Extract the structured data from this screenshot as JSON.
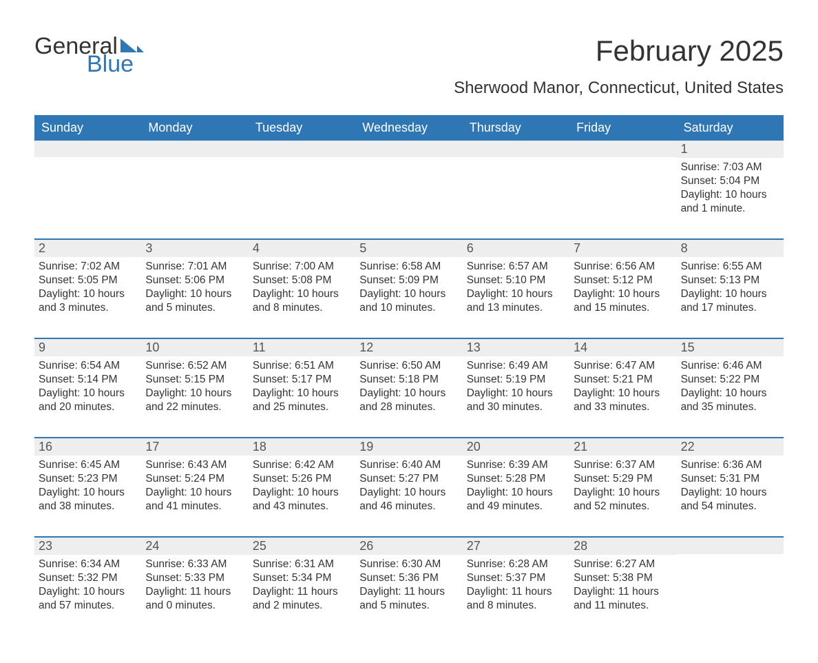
{
  "brand": {
    "line1": "General",
    "line2": "Blue",
    "text_color": "#333333",
    "accent_color": "#2f76b5"
  },
  "header": {
    "month_title": "February 2025",
    "location": "Sherwood Manor, Connecticut, United States",
    "title_fontsize": 42,
    "location_fontsize": 24
  },
  "calendar": {
    "type": "calendar-table",
    "header_bg": "#2f76b5",
    "header_text_color": "#ffffff",
    "row_divider_color": "#2f76b5",
    "daynum_bg": "#eeeeee",
    "background_color": "#ffffff",
    "text_color": "#333333",
    "body_fontsize": 15.5,
    "weekdays": [
      "Sunday",
      "Monday",
      "Tuesday",
      "Wednesday",
      "Thursday",
      "Friday",
      "Saturday"
    ],
    "weeks": [
      [
        null,
        null,
        null,
        null,
        null,
        null,
        {
          "day": "1",
          "sunrise": "Sunrise: 7:03 AM",
          "sunset": "Sunset: 5:04 PM",
          "daylight": "Daylight: 10 hours and 1 minute."
        }
      ],
      [
        {
          "day": "2",
          "sunrise": "Sunrise: 7:02 AM",
          "sunset": "Sunset: 5:05 PM",
          "daylight": "Daylight: 10 hours and 3 minutes."
        },
        {
          "day": "3",
          "sunrise": "Sunrise: 7:01 AM",
          "sunset": "Sunset: 5:06 PM",
          "daylight": "Daylight: 10 hours and 5 minutes."
        },
        {
          "day": "4",
          "sunrise": "Sunrise: 7:00 AM",
          "sunset": "Sunset: 5:08 PM",
          "daylight": "Daylight: 10 hours and 8 minutes."
        },
        {
          "day": "5",
          "sunrise": "Sunrise: 6:58 AM",
          "sunset": "Sunset: 5:09 PM",
          "daylight": "Daylight: 10 hours and 10 minutes."
        },
        {
          "day": "6",
          "sunrise": "Sunrise: 6:57 AM",
          "sunset": "Sunset: 5:10 PM",
          "daylight": "Daylight: 10 hours and 13 minutes."
        },
        {
          "day": "7",
          "sunrise": "Sunrise: 6:56 AM",
          "sunset": "Sunset: 5:12 PM",
          "daylight": "Daylight: 10 hours and 15 minutes."
        },
        {
          "day": "8",
          "sunrise": "Sunrise: 6:55 AM",
          "sunset": "Sunset: 5:13 PM",
          "daylight": "Daylight: 10 hours and 17 minutes."
        }
      ],
      [
        {
          "day": "9",
          "sunrise": "Sunrise: 6:54 AM",
          "sunset": "Sunset: 5:14 PM",
          "daylight": "Daylight: 10 hours and 20 minutes."
        },
        {
          "day": "10",
          "sunrise": "Sunrise: 6:52 AM",
          "sunset": "Sunset: 5:15 PM",
          "daylight": "Daylight: 10 hours and 22 minutes."
        },
        {
          "day": "11",
          "sunrise": "Sunrise: 6:51 AM",
          "sunset": "Sunset: 5:17 PM",
          "daylight": "Daylight: 10 hours and 25 minutes."
        },
        {
          "day": "12",
          "sunrise": "Sunrise: 6:50 AM",
          "sunset": "Sunset: 5:18 PM",
          "daylight": "Daylight: 10 hours and 28 minutes."
        },
        {
          "day": "13",
          "sunrise": "Sunrise: 6:49 AM",
          "sunset": "Sunset: 5:19 PM",
          "daylight": "Daylight: 10 hours and 30 minutes."
        },
        {
          "day": "14",
          "sunrise": "Sunrise: 6:47 AM",
          "sunset": "Sunset: 5:21 PM",
          "daylight": "Daylight: 10 hours and 33 minutes."
        },
        {
          "day": "15",
          "sunrise": "Sunrise: 6:46 AM",
          "sunset": "Sunset: 5:22 PM",
          "daylight": "Daylight: 10 hours and 35 minutes."
        }
      ],
      [
        {
          "day": "16",
          "sunrise": "Sunrise: 6:45 AM",
          "sunset": "Sunset: 5:23 PM",
          "daylight": "Daylight: 10 hours and 38 minutes."
        },
        {
          "day": "17",
          "sunrise": "Sunrise: 6:43 AM",
          "sunset": "Sunset: 5:24 PM",
          "daylight": "Daylight: 10 hours and 41 minutes."
        },
        {
          "day": "18",
          "sunrise": "Sunrise: 6:42 AM",
          "sunset": "Sunset: 5:26 PM",
          "daylight": "Daylight: 10 hours and 43 minutes."
        },
        {
          "day": "19",
          "sunrise": "Sunrise: 6:40 AM",
          "sunset": "Sunset: 5:27 PM",
          "daylight": "Daylight: 10 hours and 46 minutes."
        },
        {
          "day": "20",
          "sunrise": "Sunrise: 6:39 AM",
          "sunset": "Sunset: 5:28 PM",
          "daylight": "Daylight: 10 hours and 49 minutes."
        },
        {
          "day": "21",
          "sunrise": "Sunrise: 6:37 AM",
          "sunset": "Sunset: 5:29 PM",
          "daylight": "Daylight: 10 hours and 52 minutes."
        },
        {
          "day": "22",
          "sunrise": "Sunrise: 6:36 AM",
          "sunset": "Sunset: 5:31 PM",
          "daylight": "Daylight: 10 hours and 54 minutes."
        }
      ],
      [
        {
          "day": "23",
          "sunrise": "Sunrise: 6:34 AM",
          "sunset": "Sunset: 5:32 PM",
          "daylight": "Daylight: 10 hours and 57 minutes."
        },
        {
          "day": "24",
          "sunrise": "Sunrise: 6:33 AM",
          "sunset": "Sunset: 5:33 PM",
          "daylight": "Daylight: 11 hours and 0 minutes."
        },
        {
          "day": "25",
          "sunrise": "Sunrise: 6:31 AM",
          "sunset": "Sunset: 5:34 PM",
          "daylight": "Daylight: 11 hours and 2 minutes."
        },
        {
          "day": "26",
          "sunrise": "Sunrise: 6:30 AM",
          "sunset": "Sunset: 5:36 PM",
          "daylight": "Daylight: 11 hours and 5 minutes."
        },
        {
          "day": "27",
          "sunrise": "Sunrise: 6:28 AM",
          "sunset": "Sunset: 5:37 PM",
          "daylight": "Daylight: 11 hours and 8 minutes."
        },
        {
          "day": "28",
          "sunrise": "Sunrise: 6:27 AM",
          "sunset": "Sunset: 5:38 PM",
          "daylight": "Daylight: 11 hours and 11 minutes."
        },
        null
      ]
    ]
  }
}
